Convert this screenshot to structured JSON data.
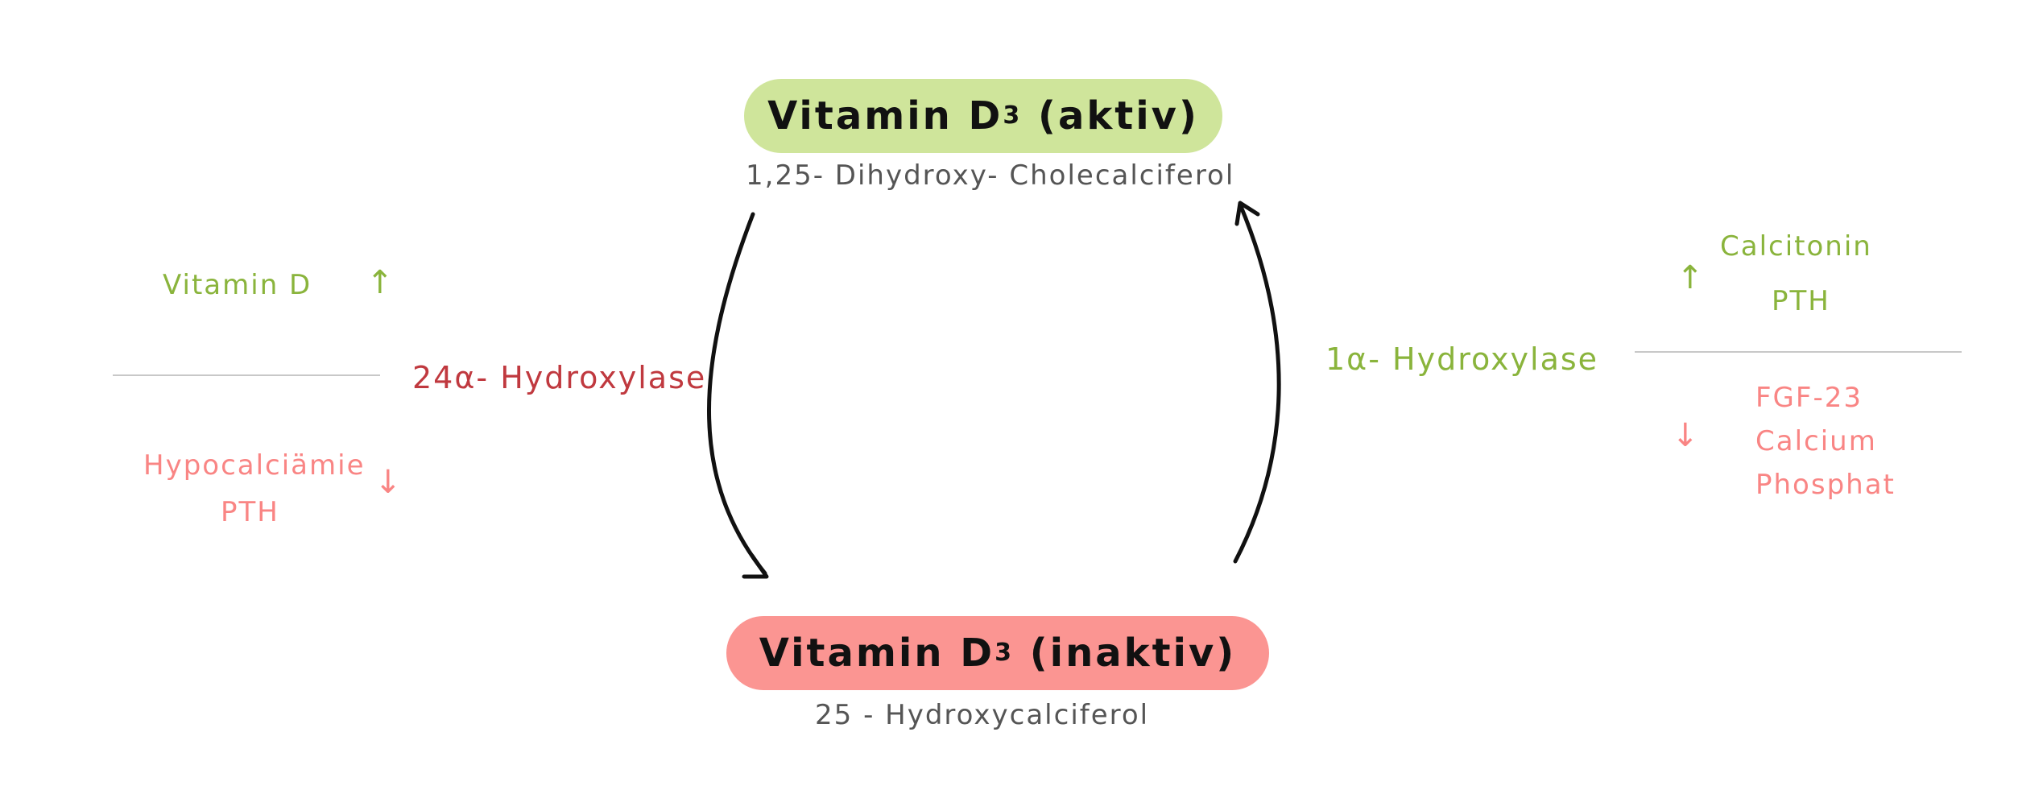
{
  "active": {
    "name": "Vitamin D",
    "subscript": "3",
    "state": "(aktiv)",
    "chemical_name": "1,25- Dihydroxy- Cholecalciferol",
    "color": "#cfe59b"
  },
  "inactive": {
    "name": "Vitamin D",
    "subscript": "3",
    "state": "(inaktiv)",
    "chemical_name": "25 - Hydroxycalciferol",
    "color": "#fb9592"
  },
  "left_enzyme": {
    "label": "24α- Hydroxylase",
    "color": "#c0393f",
    "activators": {
      "items": [
        "Vitamin D"
      ],
      "arrow": "↑",
      "color": "#8ab43c"
    },
    "inhibitors": {
      "items": [
        "Hypocalciämie",
        "PTH"
      ],
      "arrow": "↓",
      "color": "#f98584"
    }
  },
  "right_enzyme": {
    "label": "1α- Hydroxylase",
    "color": "#8ab43c",
    "activators": {
      "items": [
        "Calcitonin",
        "PTH"
      ],
      "arrow": "↑",
      "color": "#8ab43c"
    },
    "inhibitors": {
      "items": [
        "FGF-23",
        "Calcium",
        "Phosphat"
      ],
      "arrow": "↓",
      "color": "#f98584"
    }
  }
}
